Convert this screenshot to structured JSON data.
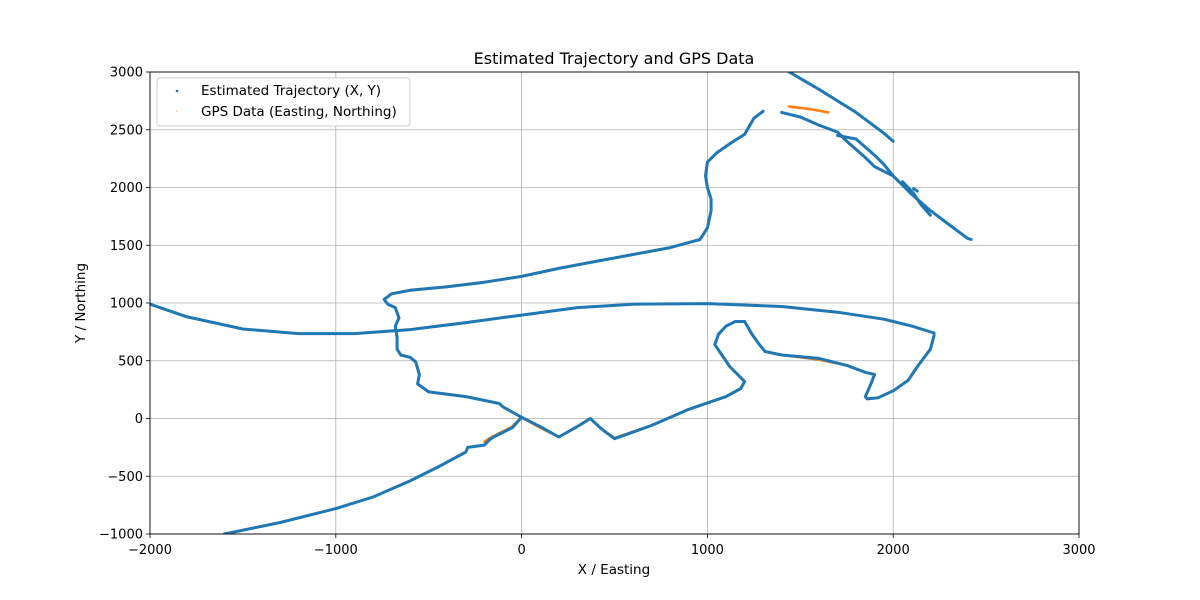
{
  "chart_data": {
    "type": "scatter",
    "title": "Estimated Trajectory and GPS Data",
    "xlabel": "X / Easting",
    "ylabel": "Y / Northing",
    "xlim": [
      -2000,
      3000
    ],
    "ylim": [
      -1000,
      3000
    ],
    "xticks": [
      -2000,
      -1000,
      0,
      1000,
      2000,
      3000
    ],
    "yticks": [
      -1000,
      -500,
      0,
      500,
      1000,
      1500,
      2000,
      2500,
      3000
    ],
    "xtick_labels": [
      "−2000",
      "−1000",
      "0",
      "1000",
      "2000",
      "3000"
    ],
    "ytick_labels": [
      "−1000",
      "−500",
      "0",
      "500",
      "1000",
      "1500",
      "2000",
      "2500",
      "3000"
    ],
    "grid": true,
    "legend_position": "top-left",
    "series": [
      {
        "name": "Estimated Trajectory (X, Y)",
        "color": "#1f77b4",
        "paths": [
          [
            [
              2220,
              740
            ],
            [
              2100,
              800
            ],
            [
              1950,
              860
            ],
            [
              1700,
              920
            ],
            [
              1400,
              970
            ],
            [
              1000,
              995
            ],
            [
              600,
              990
            ],
            [
              300,
              960
            ],
            [
              0,
              895
            ],
            [
              -300,
              830
            ],
            [
              -600,
              770
            ],
            [
              -900,
              735
            ],
            [
              -1200,
              735
            ],
            [
              -1500,
              775
            ],
            [
              -1800,
              880
            ],
            [
              -2000,
              990
            ]
          ],
          [
            [
              -1600,
              -1000
            ],
            [
              -1300,
              -900
            ],
            [
              -1000,
              -780
            ],
            [
              -800,
              -680
            ],
            [
              -600,
              -540
            ],
            [
              -450,
              -420
            ],
            [
              -300,
              -290
            ],
            [
              -290,
              -250
            ],
            [
              -200,
              -230
            ],
            [
              -170,
              -180
            ],
            [
              -150,
              -160
            ],
            [
              -50,
              -80
            ],
            [
              0,
              10
            ],
            [
              100,
              -70
            ],
            [
              200,
              -160
            ],
            [
              300,
              -70
            ],
            [
              370,
              0
            ],
            [
              430,
              -90
            ],
            [
              500,
              -175
            ],
            [
              700,
              -60
            ],
            [
              900,
              80
            ],
            [
              1100,
              190
            ],
            [
              1180,
              260
            ],
            [
              1200,
              320
            ],
            [
              1120,
              450
            ],
            [
              1040,
              640
            ],
            [
              1060,
              730
            ],
            [
              1100,
              800
            ],
            [
              1150,
              840
            ],
            [
              1200,
              840
            ],
            [
              1240,
              730
            ],
            [
              1280,
              640
            ],
            [
              1310,
              580
            ],
            [
              1400,
              550
            ],
            [
              1600,
              520
            ],
            [
              1750,
              460
            ],
            [
              1850,
              400
            ],
            [
              1900,
              380
            ],
            [
              1870,
              260
            ],
            [
              1850,
              190
            ],
            [
              1860,
              170
            ],
            [
              1920,
              180
            ],
            [
              2000,
              240
            ],
            [
              2080,
              330
            ],
            [
              2130,
              450
            ],
            [
              2200,
              600
            ],
            [
              2220,
              720
            ]
          ],
          [
            [
              1300,
              2660
            ],
            [
              1250,
              2600
            ],
            [
              1200,
              2460
            ],
            [
              1130,
              2390
            ],
            [
              1050,
              2300
            ],
            [
              1000,
              2220
            ],
            [
              990,
              2100
            ],
            [
              1000,
              2000
            ],
            [
              1020,
              1900
            ],
            [
              1020,
              1800
            ],
            [
              1000,
              1650
            ],
            [
              960,
              1550
            ],
            [
              800,
              1480
            ],
            [
              600,
              1420
            ],
            [
              400,
              1360
            ],
            [
              200,
              1300
            ],
            [
              0,
              1230
            ],
            [
              -200,
              1180
            ],
            [
              -400,
              1140
            ],
            [
              -600,
              1110
            ],
            [
              -700,
              1080
            ],
            [
              -740,
              1030
            ],
            [
              -720,
              990
            ],
            [
              -680,
              960
            ],
            [
              -660,
              870
            ],
            [
              -680,
              800
            ],
            [
              -670,
              700
            ],
            [
              -670,
              600
            ],
            [
              -650,
              550
            ],
            [
              -600,
              530
            ],
            [
              -570,
              490
            ],
            [
              -550,
              380
            ],
            [
              -560,
              300
            ],
            [
              -500,
              230
            ],
            [
              -300,
              190
            ],
            [
              -120,
              130
            ],
            [
              -100,
              100
            ],
            [
              0,
              10
            ]
          ],
          [
            [
              1400,
              2650
            ],
            [
              1500,
              2610
            ],
            [
              1600,
              2540
            ],
            [
              1700,
              2480
            ],
            [
              1750,
              2400
            ],
            [
              1800,
              2330
            ],
            [
              1850,
              2260
            ],
            [
              1900,
              2180
            ],
            [
              2000,
              2100
            ],
            [
              2100,
              1940
            ],
            [
              2200,
              1800
            ],
            [
              2300,
              1680
            ],
            [
              2400,
              1560
            ],
            [
              2420,
              1550
            ]
          ],
          [
            [
              1440,
              3000
            ],
            [
              1600,
              2850
            ],
            [
              1800,
              2650
            ],
            [
              1950,
              2470
            ],
            [
              2000,
              2400
            ]
          ],
          [
            [
              1700,
              2450
            ],
            [
              1800,
              2420
            ],
            [
              1850,
              2350
            ],
            [
              1900,
              2280
            ],
            [
              1950,
              2200
            ],
            [
              2000,
              2100
            ]
          ],
          [
            [
              2050,
              2050
            ],
            [
              2110,
              1950
            ],
            [
              2150,
              1850
            ],
            [
              2200,
              1760
            ]
          ],
          [
            [
              2110,
              1990
            ],
            [
              2130,
              1970
            ]
          ]
        ]
      },
      {
        "name": "GPS Data (Easting, Northing)",
        "color": "#ff7f0e",
        "paths": [
          [
            [
              -200,
              -200
            ],
            [
              -160,
              -160
            ],
            [
              -50,
              -70
            ],
            [
              0,
              10
            ],
            [
              100,
              -80
            ],
            [
              200,
              -160
            ],
            [
              300,
              -70
            ],
            [
              370,
              0
            ],
            [
              430,
              -90
            ],
            [
              500,
              -170
            ],
            [
              700,
              -60
            ],
            [
              900,
              80
            ],
            [
              1100,
              190
            ],
            [
              1180,
              260
            ],
            [
              1200,
              320
            ],
            [
              1120,
              450
            ],
            [
              1040,
              640
            ],
            [
              1060,
              730
            ],
            [
              1100,
              800
            ],
            [
              1150,
              840
            ],
            [
              1200,
              840
            ],
            [
              1240,
              730
            ],
            [
              1280,
              640
            ],
            [
              1310,
              580
            ],
            [
              1400,
              550
            ],
            [
              1600,
              510
            ],
            [
              1750,
              460
            ],
            [
              1850,
              400
            ],
            [
              1900,
              380
            ],
            [
              1870,
              260
            ],
            [
              1850,
              190
            ],
            [
              1860,
              170
            ],
            [
              1920,
              180
            ],
            [
              2000,
              240
            ],
            [
              2080,
              330
            ],
            [
              2130,
              450
            ],
            [
              2200,
              600
            ],
            [
              2220,
              720
            ]
          ],
          [
            [
              1300,
              2660
            ],
            [
              1250,
              2600
            ],
            [
              1200,
              2460
            ],
            [
              1130,
              2390
            ],
            [
              1050,
              2300
            ],
            [
              1000,
              2220
            ],
            [
              990,
              2100
            ],
            [
              1000,
              2000
            ],
            [
              1020,
              1900
            ],
            [
              1020,
              1800
            ],
            [
              1000,
              1650
            ],
            [
              960,
              1550
            ],
            [
              800,
              1480
            ],
            [
              600,
              1420
            ],
            [
              400,
              1360
            ],
            [
              200,
              1300
            ],
            [
              0,
              1230
            ],
            [
              -200,
              1180
            ],
            [
              -400,
              1140
            ],
            [
              -600,
              1110
            ],
            [
              -700,
              1080
            ],
            [
              -740,
              1030
            ],
            [
              -720,
              990
            ],
            [
              -680,
              960
            ],
            [
              -660,
              870
            ],
            [
              -680,
              800
            ],
            [
              -670,
              700
            ],
            [
              -670,
              600
            ],
            [
              -650,
              550
            ],
            [
              -600,
              530
            ],
            [
              -570,
              490
            ],
            [
              -550,
              380
            ],
            [
              -560,
              300
            ],
            [
              -500,
              230
            ],
            [
              -300,
              190
            ],
            [
              -120,
              130
            ],
            [
              -100,
              100
            ],
            [
              0,
              10
            ]
          ],
          [
            [
              1440,
              2700
            ],
            [
              1550,
              2680
            ],
            [
              1650,
              2650
            ]
          ]
        ]
      }
    ]
  }
}
